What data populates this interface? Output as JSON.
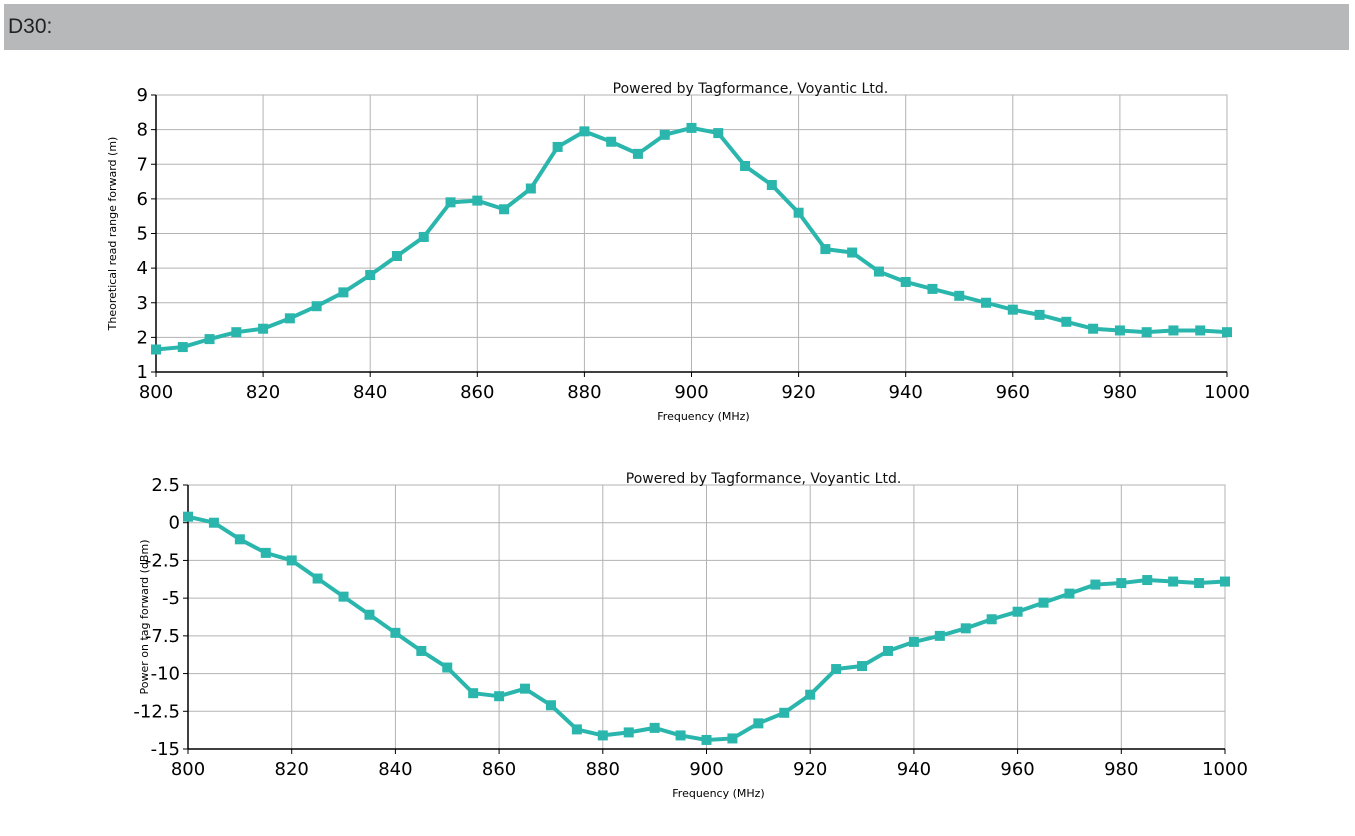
{
  "header": {
    "title": "D30:"
  },
  "colors": {
    "series": "#2ab6ac",
    "grid": "#b3b3b3",
    "axis": "#000000",
    "header_bg": "#b7b8b9"
  },
  "chart_data": [
    {
      "type": "line",
      "watermark": "Powered by Tagformance, Voyantic Ltd.",
      "xlabel": "Frequency (MHz)",
      "ylabel": "Theoretical read range forward (m)",
      "xlim": [
        800,
        1000
      ],
      "ylim": [
        1,
        9
      ],
      "xticks": [
        800,
        820,
        840,
        860,
        880,
        900,
        920,
        940,
        960,
        980,
        1000
      ],
      "yticks": [
        1,
        2,
        3,
        4,
        5,
        6,
        7,
        8,
        9
      ],
      "ytick_labels": [
        "1",
        "2",
        "3",
        "4",
        "5",
        "6",
        "7",
        "8",
        "9"
      ],
      "series": [
        {
          "name": "Read range",
          "x": [
            800,
            805,
            810,
            815,
            820,
            825,
            830,
            835,
            840,
            845,
            850,
            855,
            860,
            865,
            870,
            875,
            880,
            885,
            890,
            895,
            900,
            905,
            910,
            915,
            920,
            925,
            930,
            935,
            940,
            945,
            950,
            955,
            960,
            965,
            970,
            975,
            980,
            985,
            990,
            995,
            1000
          ],
          "y": [
            1.65,
            1.72,
            1.95,
            2.15,
            2.25,
            2.55,
            2.9,
            3.3,
            3.8,
            4.35,
            4.9,
            5.9,
            5.95,
            5.7,
            6.3,
            7.5,
            7.95,
            7.65,
            7.3,
            7.85,
            8.05,
            7.9,
            6.95,
            6.4,
            5.6,
            4.55,
            4.45,
            3.9,
            3.6,
            3.4,
            3.2,
            3.0,
            2.8,
            2.65,
            2.45,
            2.25,
            2.2,
            2.15,
            2.2,
            2.2,
            2.15
          ]
        }
      ]
    },
    {
      "type": "line",
      "watermark": "Powered by Tagformance, Voyantic Ltd.",
      "xlabel": "Frequency (MHz)",
      "ylabel": "Power on tag forward (dBm)",
      "xlim": [
        800,
        1000
      ],
      "ylim": [
        -15,
        2.5
      ],
      "xticks": [
        800,
        820,
        840,
        860,
        880,
        900,
        920,
        940,
        960,
        980,
        1000
      ],
      "yticks": [
        2.5,
        0,
        -2.5,
        -5,
        -7.5,
        -10,
        -12.5,
        -15
      ],
      "ytick_labels": [
        "2.5",
        "0",
        "-2.5",
        "-5",
        "-7.5",
        "-10",
        "-12.5",
        "-15"
      ],
      "series": [
        {
          "name": "Power on tag",
          "x": [
            800,
            805,
            810,
            815,
            820,
            825,
            830,
            835,
            840,
            845,
            850,
            855,
            860,
            865,
            870,
            875,
            880,
            885,
            890,
            895,
            900,
            905,
            910,
            915,
            920,
            925,
            930,
            935,
            940,
            945,
            950,
            955,
            960,
            965,
            970,
            975,
            980,
            985,
            990,
            995,
            1000
          ],
          "y": [
            0.4,
            0.0,
            -1.1,
            -2.0,
            -2.5,
            -3.7,
            -4.9,
            -6.1,
            -7.3,
            -8.5,
            -9.6,
            -11.3,
            -11.5,
            -11.0,
            -12.1,
            -13.7,
            -14.1,
            -13.9,
            -13.6,
            -14.1,
            -14.4,
            -14.3,
            -13.3,
            -12.6,
            -11.4,
            -9.7,
            -9.5,
            -8.5,
            -7.9,
            -7.5,
            -7.0,
            -6.4,
            -5.9,
            -5.3,
            -4.7,
            -4.1,
            -4.0,
            -3.8,
            -3.9,
            -4.0,
            -3.9
          ]
        }
      ]
    }
  ]
}
